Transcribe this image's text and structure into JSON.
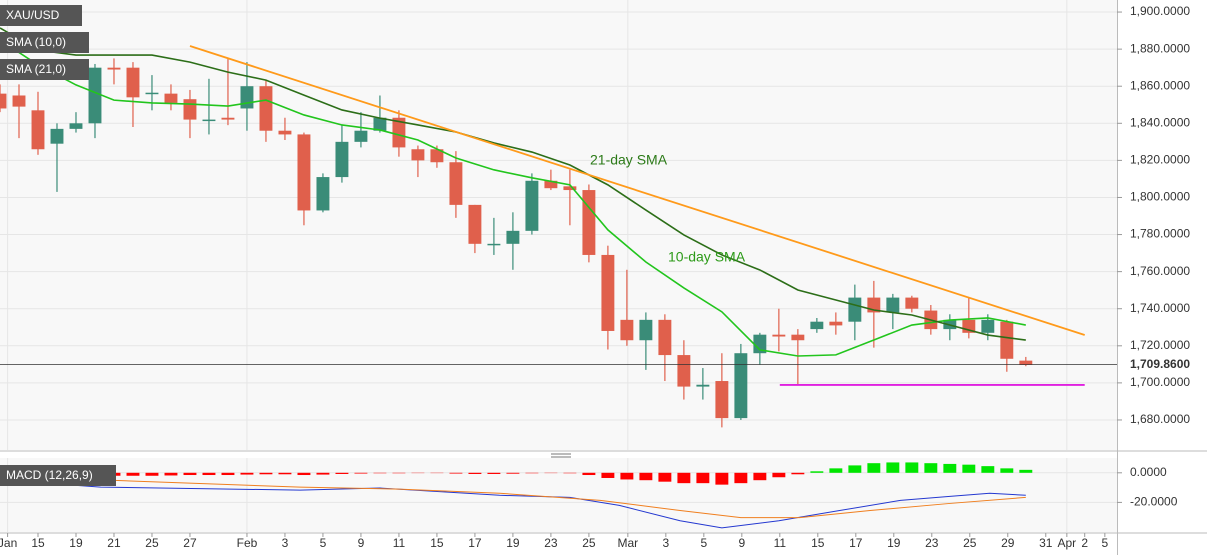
{
  "chart_data": [
    {
      "type": "candlestick",
      "name": "XAU/USD",
      "x": [
        0,
        1,
        2,
        3,
        4,
        5,
        6,
        7,
        8,
        9,
        10,
        11,
        12,
        13,
        14,
        15,
        16,
        17,
        18,
        19,
        20,
        21,
        22,
        23,
        24,
        25,
        26,
        27,
        28,
        29,
        30,
        31,
        32,
        33,
        34,
        35,
        36,
        37,
        38,
        39,
        40,
        41,
        42,
        43,
        44,
        45,
        46,
        47,
        48,
        49,
        50,
        51,
        52,
        53,
        54
      ],
      "open": [
        1856,
        1855,
        1847,
        1829,
        1837,
        1840,
        1870,
        1870,
        1856,
        1856,
        1853,
        1842,
        1843,
        1848,
        1860,
        1836,
        1834,
        1793,
        1811,
        1830,
        1836,
        1843,
        1826,
        1826,
        1819,
        1796,
        1775,
        1775,
        1782,
        1809,
        1806,
        1804,
        1769,
        1734,
        1723,
        1734,
        1715,
        1698,
        1701,
        1681,
        1716,
        1726,
        1726,
        1729,
        1733,
        1733,
        1746,
        1738,
        1746,
        1739,
        1729,
        1734,
        1727,
        1733,
        1712
      ],
      "high": [
        1861,
        1861,
        1857,
        1840,
        1846,
        1872,
        1875,
        1873,
        1866,
        1861,
        1858,
        1864,
        1875,
        1873,
        1863,
        1843,
        1835,
        1813,
        1839,
        1846,
        1855,
        1847,
        1828,
        1828,
        1825,
        1796,
        1789,
        1792,
        1813,
        1815,
        1815,
        1807,
        1774,
        1761,
        1738,
        1737,
        1723,
        1708,
        1716,
        1721,
        1727,
        1740,
        1729,
        1735,
        1738,
        1753,
        1755,
        1748,
        1747,
        1742,
        1737,
        1746,
        1737,
        1734,
        1714
      ],
      "low": [
        1846,
        1832,
        1823,
        1803,
        1835,
        1832,
        1861,
        1838,
        1847,
        1847,
        1832,
        1834,
        1839,
        1836,
        1830,
        1831,
        1785,
        1792,
        1808,
        1827,
        1835,
        1822,
        1811,
        1816,
        1789,
        1770,
        1769,
        1761,
        1780,
        1804,
        1785,
        1765,
        1718,
        1720,
        1707,
        1701,
        1691,
        1691,
        1676,
        1680,
        1710,
        1717,
        1699,
        1727,
        1726,
        1723,
        1719,
        1729,
        1738,
        1726,
        1723,
        1724,
        1723,
        1706,
        1709
      ],
      "close": [
        1848,
        1849,
        1826,
        1837,
        1840,
        1870,
        1869,
        1854,
        1856.5,
        1851,
        1842,
        1842,
        1842,
        1860,
        1836,
        1834,
        1793,
        1811,
        1830,
        1836,
        1843,
        1827,
        1820,
        1819,
        1796,
        1775,
        1775,
        1782,
        1809,
        1805,
        1804,
        1769,
        1728,
        1723,
        1734,
        1715,
        1698,
        1699,
        1681,
        1716,
        1726,
        1725,
        1723,
        1733,
        1731,
        1746,
        1738,
        1746,
        1740,
        1729,
        1734,
        1727,
        1734,
        1713,
        1709.86
      ],
      "up_color": "#3a8c78",
      "down_color": "#e0604c",
      "series": [
        {
          "name": "SMA (10,0)",
          "color": "#22c51d",
          "x": [
            0,
            2,
            4,
            6,
            8,
            10,
            12,
            14,
            16,
            18,
            20,
            22,
            24,
            26,
            28,
            30,
            32,
            34,
            36,
            38,
            40,
            42,
            44,
            46,
            48,
            50,
            52,
            54
          ],
          "values": [
            1884.9,
            1871.5,
            1860.7,
            1852.5,
            1851.0,
            1850.4,
            1849.3,
            1852.5,
            1844.5,
            1839.1,
            1836.4,
            1831.0,
            1821.3,
            1814.9,
            1810.6,
            1806.8,
            1782.5,
            1765.2,
            1751.2,
            1738.3,
            1717.8,
            1714.5,
            1715.1,
            1723.1,
            1731.2,
            1733.9,
            1735.0,
            1731.2
          ]
        },
        {
          "name": "SMA (21,0)",
          "color": "#2c6e18",
          "x": [
            0,
            2,
            4,
            6,
            8,
            10,
            12,
            14,
            16,
            18,
            20,
            22,
            24,
            26,
            28,
            30,
            32,
            34,
            36,
            38,
            40,
            42,
            44,
            46,
            48,
            50,
            52,
            54
          ],
          "values": [
            1891.4,
            1879.5,
            1876.8,
            1876.8,
            1876.8,
            1873.0,
            1867.6,
            1863.3,
            1855.2,
            1847.2,
            1842.8,
            1839.1,
            1835.3,
            1829.4,
            1824.5,
            1817.5,
            1806.8,
            1793.2,
            1779.8,
            1769.0,
            1760.9,
            1750.1,
            1744.7,
            1739.3,
            1736.6,
            1731.2,
            1725.8,
            1723.1
          ]
        }
      ],
      "lines": [
        {
          "color": "#ff9a1a",
          "x": [
            10,
            57.1
          ],
          "values": [
            1881.7,
            1725.8
          ]
        },
        {
          "color": "#e020e0",
          "x": [
            41.05,
            57.1
          ],
          "values": [
            1698.9,
            1698.9
          ]
        }
      ],
      "annotations": [
        "21-day SMA",
        "10-day SMA"
      ],
      "current_price": {
        "value": 1709.86,
        "label": "1,709.8600"
      },
      "xlim": [
        0,
        58.8
      ],
      "ylim": [
        1663.8,
        1906.5
      ],
      "yticks": [
        {
          "value": 1680,
          "label": "1,680.0000"
        },
        {
          "value": 1700,
          "label": "1,700.0000"
        },
        {
          "value": 1720,
          "label": "1,720.0000"
        },
        {
          "value": 1740,
          "label": "1,740.0000"
        },
        {
          "value": 1760,
          "label": "1,760.0000"
        },
        {
          "value": 1780,
          "label": "1,780.0000"
        },
        {
          "value": 1800,
          "label": "1,800.0000"
        },
        {
          "value": 1820,
          "label": "1,820.0000"
        },
        {
          "value": 1840,
          "label": "1,840.0000"
        },
        {
          "value": 1860,
          "label": "1,860.0000"
        },
        {
          "value": 1880,
          "label": "1,880.0000"
        },
        {
          "value": 1900,
          "label": "1,900.0000"
        }
      ],
      "xticks": [
        {
          "value": 0.4,
          "label": "Jan"
        },
        {
          "value": 2,
          "label": "15"
        },
        {
          "value": 4,
          "label": "19"
        },
        {
          "value": 6,
          "label": "21"
        },
        {
          "value": 8,
          "label": "25"
        },
        {
          "value": 10,
          "label": "27"
        },
        {
          "value": 13,
          "label": "Feb"
        },
        {
          "value": 15,
          "label": "3"
        },
        {
          "value": 17,
          "label": "5"
        },
        {
          "value": 19,
          "label": "9"
        },
        {
          "value": 21,
          "label": "11"
        },
        {
          "value": 23,
          "label": "15"
        },
        {
          "value": 25,
          "label": "17"
        },
        {
          "value": 27,
          "label": "19"
        },
        {
          "value": 29,
          "label": "23"
        },
        {
          "value": 31,
          "label": "25"
        },
        {
          "value": 33.05,
          "label": "Mar"
        },
        {
          "value": 35.05,
          "label": "3"
        },
        {
          "value": 37.05,
          "label": "5"
        },
        {
          "value": 39.05,
          "label": "9"
        },
        {
          "value": 41.05,
          "label": "11"
        },
        {
          "value": 43.05,
          "label": "15"
        },
        {
          "value": 45.05,
          "label": "17"
        },
        {
          "value": 47.05,
          "label": "19"
        },
        {
          "value": 49.05,
          "label": "23"
        },
        {
          "value": 51.05,
          "label": "25"
        },
        {
          "value": 53.05,
          "label": "29"
        },
        {
          "value": 55.05,
          "label": "31"
        },
        {
          "value": 56.16,
          "label": "Apr"
        },
        {
          "value": 57.1,
          "label": "2"
        },
        {
          "value": 58.16,
          "label": "5"
        }
      ],
      "grid": true
    },
    {
      "type": "macd",
      "name": "MACD (12,26,9)",
      "x": [
        0,
        1,
        2,
        3,
        4,
        5,
        6,
        7,
        8,
        9,
        10,
        11,
        12,
        13,
        14,
        15,
        16,
        17,
        18,
        19,
        20,
        21,
        22,
        23,
        24,
        25,
        26,
        27,
        28,
        29,
        30,
        31,
        32,
        33,
        34,
        35,
        36,
        37,
        38,
        39,
        40,
        41,
        42,
        43,
        44,
        45,
        46,
        47,
        48,
        49,
        50,
        51,
        52,
        53,
        54
      ],
      "histogram": [
        -2,
        -2.5,
        -3,
        -3,
        -3,
        -2.5,
        -2,
        -2,
        -2,
        -1.8,
        -1.5,
        -1.5,
        -1.5,
        -1.2,
        -1,
        -1,
        -1.5,
        -1.2,
        -0.8,
        -0.5,
        -0.3,
        -0.3,
        -0.2,
        -0.2,
        -0.5,
        -0.8,
        -0.8,
        -0.6,
        -0.3,
        -0.2,
        -0.3,
        -1.5,
        -3.5,
        -4.5,
        -5,
        -6,
        -7,
        -7,
        -8,
        -7,
        -5,
        -3,
        -1,
        1,
        3,
        5,
        6.5,
        7,
        7,
        6.5,
        6,
        5.5,
        4.5,
        3,
        2
      ],
      "up_color": "#00e600",
      "down_color": "#ff0000",
      "series": [
        {
          "color": "#2438d0",
          "x": [
            0,
            5.3,
            15.8,
            20,
            26.3,
            30,
            32.6,
            35.8,
            38,
            41,
            44.2,
            47.4,
            50,
            52.1,
            54
          ],
          "values": [
            -4.8,
            -9.7,
            -11.7,
            -10.3,
            -15.2,
            -16.6,
            -22,
            -32.4,
            -37.2,
            -32.4,
            -25.5,
            -18.6,
            -15.9,
            -13.8,
            -15.2
          ]
        },
        {
          "color": "#f07f1f",
          "x": [
            0,
            5.3,
            15.8,
            21,
            26.3,
            31.6,
            35.8,
            39,
            42.1,
            45.8,
            50,
            54
          ],
          "values": [
            2.1,
            -4.8,
            -9.7,
            -11,
            -13.8,
            -18.6,
            -25.5,
            -30.3,
            -30.3,
            -25.5,
            -20.7,
            -16.6
          ]
        }
      ],
      "ylim": [
        -40,
        10
      ],
      "yticks": [
        {
          "value": 0,
          "label": "0.0000"
        },
        {
          "value": -20,
          "label": "-20.0000"
        }
      ]
    }
  ]
}
